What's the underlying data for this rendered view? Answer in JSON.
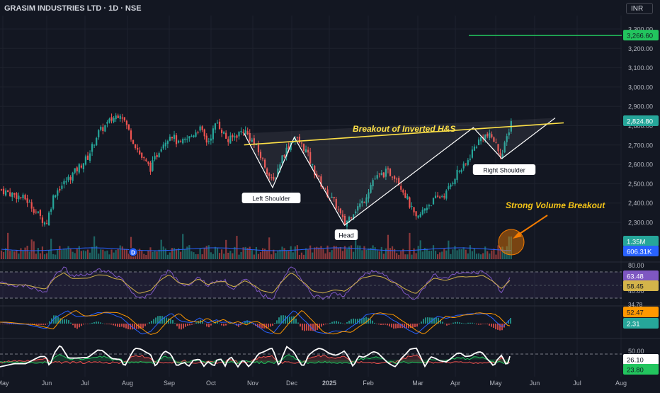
{
  "header": {
    "title": "GRASIM INDUSTRIES LTD · 1D · NSE",
    "currency": "INR"
  },
  "colors": {
    "up": "#26a69a",
    "down": "#ef5350",
    "target": "#22c55e",
    "neckline": "#fde047",
    "rsi": "#7e57c2",
    "rsi_ma": "#d4b44a",
    "macd": "#2962ff",
    "signal": "#ff9800",
    "adx": "#ffffff",
    "di_plus": "#22c55e",
    "di_minus": "#ef5350",
    "callout": "#f57c00"
  },
  "price_axis": {
    "ticks": [
      "3,300.00",
      "3,200.00",
      "3,100.00",
      "3,000.00",
      "2,900.00",
      "2,800.00",
      "2,700.00",
      "2,600.00",
      "2,500.00",
      "2,400.00",
      "2,300.00"
    ],
    "target_label": "3,266.60",
    "last_label": "2,824.80",
    "volume_label": "1.35M",
    "volume_ma_label": "606.31K"
  },
  "rsi_axis": {
    "ticks": [
      "80.00",
      "40.00"
    ],
    "value": "63.48",
    "ma_value": "58.45"
  },
  "macd_axis": {
    "value_1": "52.47",
    "value_2": "2.31",
    "partial": "34.78"
  },
  "adx_axis": {
    "ticks": [
      "50.00"
    ],
    "value_1": "26.10",
    "value_2": "23.80"
  },
  "time_axis": [
    "May",
    "Jun",
    "Jul",
    "Aug",
    "Sep",
    "Oct",
    "Nov",
    "Dec",
    "2025",
    "Feb",
    "Mar",
    "Apr",
    "May",
    "Jun",
    "Jul",
    "Aug"
  ],
  "annotations": {
    "neckline": "Breakout of Inverted H&S",
    "left_shoulder": "Left Shoulder",
    "head": "Head",
    "right_shoulder": "Right Shoulder",
    "volume": "Strong Volume Breakout",
    "dividend_marker": "D"
  },
  "chart_data": {
    "type": "candlestick",
    "title": "GRASIM INDUSTRIES LTD · 1D · NSE",
    "ylim": [
      2200,
      3330
    ],
    "target_price": 3266.6,
    "last_price": 2824.8,
    "pattern_points": [
      {
        "label": "Left Shoulder",
        "x": "2024-11-18",
        "y": 2480
      },
      {
        "label": "Head",
        "x": "2025-01-10",
        "y": 2285
      },
      {
        "label": "Right Shoulder",
        "x": "2025-05-06",
        "y": 2630
      }
    ],
    "neckline": [
      {
        "x": "2024-10-28",
        "y": 2730
      },
      {
        "x": "2025-05-28",
        "y": 2800
      }
    ],
    "price_path": [
      [
        "2024-05-01",
        2470
      ],
      [
        "2024-05-20",
        2420
      ],
      [
        "2024-06-04",
        2290
      ],
      [
        "2024-06-10",
        2450
      ],
      [
        "2024-06-25",
        2560
      ],
      [
        "2024-07-05",
        2640
      ],
      [
        "2024-07-12",
        2760
      ],
      [
        "2024-07-22",
        2830
      ],
      [
        "2024-07-29",
        2870
      ],
      [
        "2024-08-06",
        2740
      ],
      [
        "2024-08-13",
        2640
      ],
      [
        "2024-08-20",
        2580
      ],
      [
        "2024-08-28",
        2700
      ],
      [
        "2024-09-04",
        2760
      ],
      [
        "2024-09-10",
        2700
      ],
      [
        "2024-09-18",
        2740
      ],
      [
        "2024-09-25",
        2790
      ],
      [
        "2024-10-01",
        2710
      ],
      [
        "2024-10-08",
        2820
      ],
      [
        "2024-10-16",
        2720
      ],
      [
        "2024-10-28",
        2780
      ],
      [
        "2024-11-05",
        2700
      ],
      [
        "2024-11-12",
        2600
      ],
      [
        "2024-11-18",
        2500
      ],
      [
        "2024-11-25",
        2640
      ],
      [
        "2024-12-04",
        2740
      ],
      [
        "2024-12-12",
        2680
      ],
      [
        "2024-12-19",
        2560
      ],
      [
        "2024-12-26",
        2470
      ],
      [
        "2025-01-03",
        2400
      ],
      [
        "2025-01-10",
        2290
      ],
      [
        "2025-01-17",
        2360
      ],
      [
        "2025-01-24",
        2410
      ],
      [
        "2025-01-31",
        2520
      ],
      [
        "2025-02-10",
        2560
      ],
      [
        "2025-02-17",
        2540
      ],
      [
        "2025-02-24",
        2440
      ],
      [
        "2025-03-04",
        2310
      ],
      [
        "2025-03-11",
        2380
      ],
      [
        "2025-03-18",
        2420
      ],
      [
        "2025-03-26",
        2450
      ],
      [
        "2025-04-03",
        2560
      ],
      [
        "2025-04-09",
        2590
      ],
      [
        "2025-04-15",
        2680
      ],
      [
        "2025-04-22",
        2750
      ],
      [
        "2025-04-29",
        2740
      ],
      [
        "2025-05-06",
        2640
      ],
      [
        "2025-05-13",
        2825
      ]
    ],
    "ohlc_sample": [
      {
        "date": "2024-07-29",
        "open": 2840,
        "high": 2880,
        "low": 2820,
        "close": 2870
      },
      {
        "date": "2025-01-10",
        "open": 2320,
        "high": 2340,
        "low": 2280,
        "close": 2295
      },
      {
        "date": "2025-05-13",
        "open": 2740,
        "high": 2840,
        "low": 2735,
        "close": 2824.8
      }
    ],
    "volume": {
      "last": "1.35M",
      "ma": "606.31K"
    },
    "rsi": {
      "value": 63.48,
      "ma": 58.45,
      "levels": [
        80,
        40
      ]
    },
    "macd": {
      "value": 52.47,
      "signal": 2.31
    },
    "adx": {
      "value": 26.1,
      "second": 23.8,
      "level": 50
    },
    "grid": true,
    "legend": "none"
  }
}
